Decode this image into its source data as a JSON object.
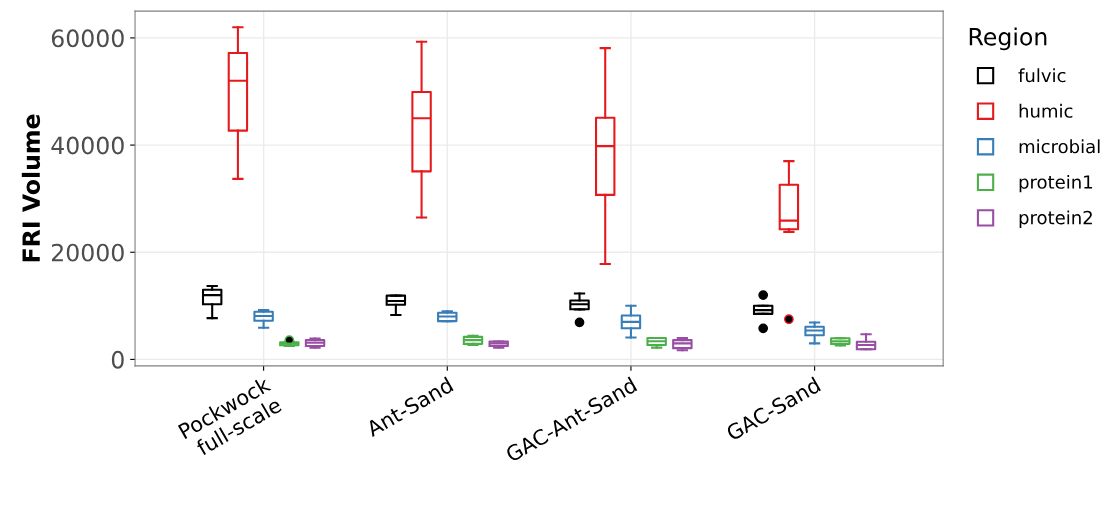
{
  "chart_data": {
    "type": "box",
    "ylabel": "FRI Volume",
    "legend_title": "Region",
    "categories": [
      "Pockwock\nfull-scale",
      "Ant-Sand",
      "GAC-Ant-Sand",
      "GAC-Sand"
    ],
    "ylim": [
      -1200,
      65000
    ],
    "yticks": [
      0,
      20000,
      40000,
      60000
    ],
    "grid": true,
    "legend": "right",
    "series": [
      {
        "name": "fulvic",
        "color": "#000000",
        "boxes": [
          {
            "low": 7700,
            "q1": 10300,
            "median": 12000,
            "q3": 13000,
            "high": 13700
          },
          {
            "low": 8300,
            "q1": 10200,
            "median": 10900,
            "q3": 11900,
            "high": 11900
          },
          {
            "low": 9300,
            "q1": 9350,
            "median": 10300,
            "q3": 11000,
            "high": 12300,
            "outliers": [
              6900
            ]
          },
          {
            "low": 8500,
            "q1": 8500,
            "median": 9200,
            "q3": 10000,
            "high": 10000,
            "outliers": [
              12000,
              5800
            ]
          }
        ]
      },
      {
        "name": "humic",
        "color": "#e41a1c",
        "boxes": [
          {
            "low": 33700,
            "q1": 42700,
            "median": 52000,
            "q3": 57200,
            "high": 62000
          },
          {
            "low": 26500,
            "q1": 35100,
            "median": 45000,
            "q3": 49900,
            "high": 59300
          },
          {
            "low": 17800,
            "q1": 30700,
            "median": 39800,
            "q3": 45100,
            "high": 58100
          },
          {
            "low": 23800,
            "q1": 24300,
            "median": 25900,
            "q3": 32600,
            "high": 37000,
            "outliers": [
              7500
            ]
          }
        ]
      },
      {
        "name": "microbial",
        "color": "#377eb8",
        "boxes": [
          {
            "low": 5900,
            "q1": 7200,
            "median": 8100,
            "q3": 8900,
            "high": 9200
          },
          {
            "low": 7150,
            "q1": 7150,
            "median": 8000,
            "q3": 8700,
            "high": 9000
          },
          {
            "low": 4100,
            "q1": 5800,
            "median": 7000,
            "q3": 8200,
            "high": 10000
          },
          {
            "low": 3000,
            "q1": 4500,
            "median": 5400,
            "q3": 6100,
            "high": 6900
          }
        ]
      },
      {
        "name": "protein1",
        "color": "#4daf4a",
        "boxes": [
          {
            "low": 2500,
            "q1": 2650,
            "median": 2950,
            "q3": 3200,
            "high": 3300,
            "outliers": [
              3600
            ]
          },
          {
            "low": 2700,
            "q1": 2900,
            "median": 3600,
            "q3": 4200,
            "high": 4400
          },
          {
            "low": 2200,
            "q1": 2700,
            "median": 3400,
            "q3": 4000,
            "high": 4000
          },
          {
            "low": 2600,
            "q1": 2900,
            "median": 3400,
            "q3": 3950,
            "high": 3950
          }
        ]
      },
      {
        "name": "protein2",
        "color": "#984ea3",
        "boxes": [
          {
            "low": 2200,
            "q1": 2500,
            "median": 3100,
            "q3": 3600,
            "high": 3900
          },
          {
            "low": 2200,
            "q1": 2500,
            "median": 3000,
            "q3": 3350,
            "high": 3350
          },
          {
            "low": 1700,
            "q1": 2100,
            "median": 3000,
            "q3": 3600,
            "high": 4000
          },
          {
            "low": 1900,
            "q1": 1900,
            "median": 2700,
            "q3": 3300,
            "high": 4700
          }
        ]
      }
    ]
  }
}
